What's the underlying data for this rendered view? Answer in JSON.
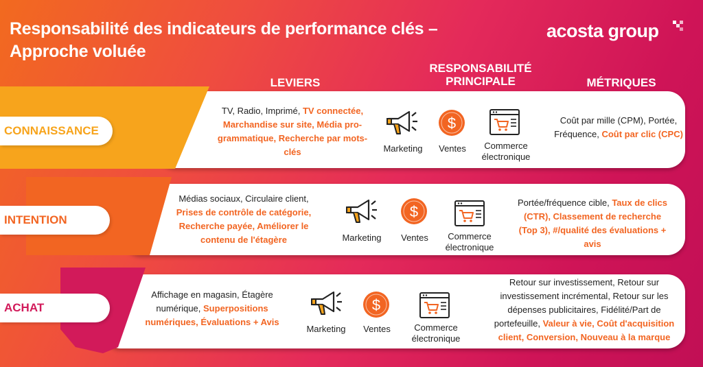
{
  "title": "Responsabilité des indicateurs de performance clés – Approche voluée",
  "logo": "acosta group",
  "columns": {
    "leviers": "LEVIERS",
    "responsabilite_l1": "RESPONSABILITÉ",
    "responsabilite_l2": "PRINCIPALE",
    "metriques": "MÉTRIQUES"
  },
  "colors": {
    "connaissance": "#f7a41c",
    "intention": "#f26522",
    "achat": "#d21a5a",
    "highlight": "#f26522"
  },
  "icon_labels": {
    "marketing": "Marketing",
    "ventes": "Ventes",
    "commerce_l1": "Commerce",
    "commerce_l2": "électronique"
  },
  "icons": [
    "megaphone-icon",
    "dollar-coin-icon",
    "ecommerce-cart-icon"
  ],
  "rows": [
    {
      "stage": "CONNAISSANCE",
      "leviers_plain": "TV, Radio, Imprimé, ",
      "leviers_highlight": "TV connectée, Marchandise sur site, Média pro-grammatique, Recherche par mots-clés",
      "metriques_plain": "Coût par mille (CPM), Portée, Fréquence, ",
      "metriques_highlight": "Coût par clic (CPC)"
    },
    {
      "stage": "INTENTION",
      "leviers_plain": "Médias sociaux, Circulaire client, ",
      "leviers_highlight": "Prises de contrôle de catégorie, Recherche payée, Améliorer le contenu de l'étagère",
      "metriques_plain": "Portée/fréquence cible, ",
      "metriques_highlight": "Taux de clics (CTR), Classement de recherche (Top 3), #/qualité des évaluations + avis"
    },
    {
      "stage": "ACHAT",
      "leviers_plain": "Affichage en magasin, Étagère numérique, ",
      "leviers_highlight": "Superpositions numériques, Évaluations + Avis",
      "metriques_plain": "Retour sur investissement, Retour sur investissement incrémental, Retour sur les dépenses publicitaires, Fidélité/Part de portefeuille, ",
      "metriques_highlight": "Valeur à vie, Coût d'acquisition client, Conversion, Nouveau à la marque"
    }
  ]
}
